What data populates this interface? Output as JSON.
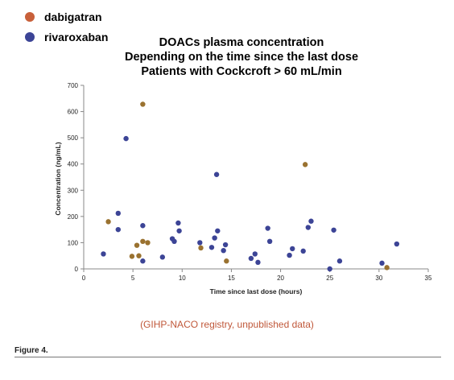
{
  "colors": {
    "dabigatran": "#9a7230",
    "rivaroxaban": "#3c4496",
    "legend_dabigatran": "#c8603a",
    "legend_rivaroxaban": "#3c4496",
    "source_note": "#c0583a"
  },
  "chart_data": {
    "type": "scatter",
    "title_lines": [
      "DOACs plasma concentration",
      "Depending on the time since the last dose",
      "Patients with Cockcroft > 60 mL/min"
    ],
    "xlabel": "Time since last dose (hours)",
    "ylabel": "Concentration (ng/mL)",
    "xlim": [
      0,
      35
    ],
    "ylim": [
      0,
      700
    ],
    "xticks": [
      0,
      5,
      10,
      15,
      20,
      25,
      30,
      35
    ],
    "yticks": [
      0,
      100,
      200,
      300,
      400,
      500,
      600,
      700
    ],
    "grid": false,
    "legend_position": "top-left",
    "series": [
      {
        "name": "dabigatran",
        "points": [
          [
            2.5,
            180
          ],
          [
            4.9,
            48
          ],
          [
            5.4,
            90
          ],
          [
            5.6,
            50
          ],
          [
            6.0,
            105
          ],
          [
            6.0,
            628
          ],
          [
            6.5,
            100
          ],
          [
            11.9,
            80
          ],
          [
            14.5,
            30
          ],
          [
            22.5,
            398
          ],
          [
            30.8,
            5
          ]
        ]
      },
      {
        "name": "rivaroxaban",
        "points": [
          [
            2.0,
            57
          ],
          [
            3.5,
            212
          ],
          [
            3.5,
            150
          ],
          [
            4.3,
            497
          ],
          [
            6.0,
            165
          ],
          [
            6.0,
            30
          ],
          [
            8.0,
            45
          ],
          [
            9.0,
            115
          ],
          [
            9.2,
            105
          ],
          [
            9.6,
            175
          ],
          [
            9.7,
            145
          ],
          [
            11.8,
            100
          ],
          [
            13.0,
            82
          ],
          [
            13.3,
            118
          ],
          [
            13.5,
            360
          ],
          [
            13.6,
            145
          ],
          [
            14.2,
            70
          ],
          [
            14.4,
            92
          ],
          [
            17.0,
            40
          ],
          [
            17.4,
            57
          ],
          [
            17.7,
            25
          ],
          [
            18.7,
            155
          ],
          [
            18.9,
            105
          ],
          [
            20.9,
            52
          ],
          [
            21.2,
            77
          ],
          [
            22.3,
            68
          ],
          [
            22.8,
            158
          ],
          [
            23.1,
            182
          ],
          [
            25.0,
            0
          ],
          [
            25.4,
            148
          ],
          [
            26.0,
            30
          ],
          [
            30.3,
            22
          ],
          [
            31.8,
            95
          ]
        ]
      }
    ]
  },
  "source_note": "(GIHP-NACO registry, unpublished data)",
  "figure_caption": "Figure 4."
}
